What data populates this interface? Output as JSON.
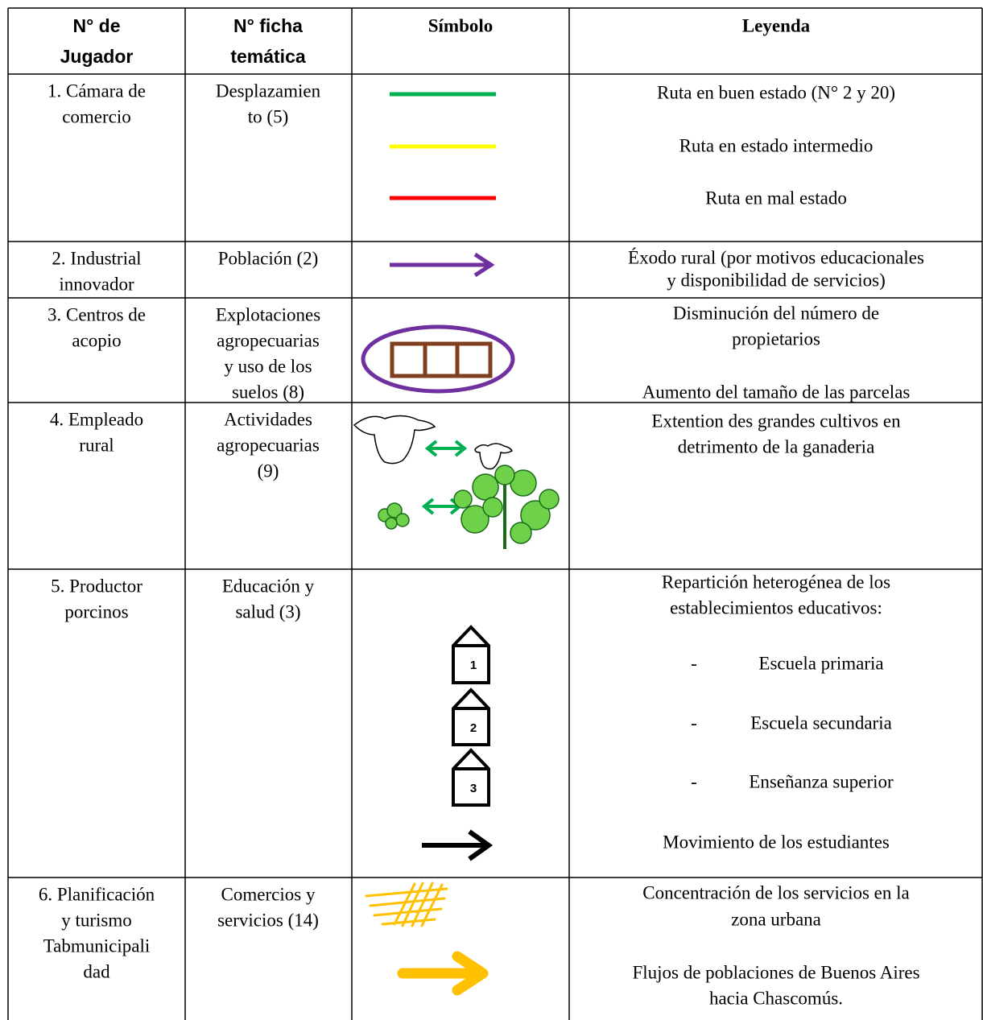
{
  "table": {
    "header": [
      [
        "N° de",
        "Jugador"
      ],
      [
        "N° ficha",
        "temática"
      ],
      [
        "Símbolo"
      ],
      [
        "Leyenda"
      ]
    ],
    "rows": [
      {
        "player": [
          "1. Cámara de",
          "comercio"
        ],
        "sheet": [
          "Desplazamien",
          "to (5)"
        ],
        "legend": [
          {
            "text": "Ruta en buen estado (N° 2 y 20)"
          },
          {
            "text": "Ruta en estado intermedio"
          },
          {
            "text": "Ruta en mal estado"
          }
        ]
      },
      {
        "player": [
          "2. Industrial",
          "innovador"
        ],
        "sheet": [
          "Población (2)"
        ],
        "legend": [
          {
            "text": "Éxodo rural (por motivos educacionales"
          },
          {
            "text": "y disponibilidad de servicios)"
          }
        ]
      },
      {
        "player": [
          "3. Centros de",
          "acopio"
        ],
        "sheet": [
          "Explotaciones",
          "agropecuarias",
          "y uso de los",
          "suelos (8)"
        ],
        "legend": [
          {
            "text": "Disminución del número de"
          },
          {
            "text": "propietarios"
          },
          {
            "text": "Aumento del tamaño de las parcelas"
          }
        ]
      },
      {
        "player": [
          "4. Empleado",
          "rural"
        ],
        "sheet": [
          "Actividades",
          "agropecuarias",
          "(9)"
        ],
        "legend": [
          {
            "text": "Extention des grandes cultivos en"
          },
          {
            "text": "detrimento de la ganaderia"
          }
        ]
      },
      {
        "player": [
          "5. Productor",
          "porcinos"
        ],
        "sheet": [
          "Educación y",
          "salud (3)"
        ],
        "legend": [
          {
            "text": "Repartición heterogénea de los"
          },
          {
            "text": "establecimientos educativos:"
          },
          {
            "bullet": "-",
            "text": "Escuela primaria"
          },
          {
            "bullet": "-",
            "text": "Escuela secundaria"
          },
          {
            "bullet": "-",
            "text": "Enseñanza superior"
          },
          {
            "text": "Movimiento de los estudiantes"
          }
        ],
        "symbol_labels": [
          "1",
          "2",
          "3"
        ]
      },
      {
        "player": [
          "6. Planificación",
          "y turismo",
          "Tabmunicipali",
          "dad"
        ],
        "sheet": [
          "Comercios y",
          "servicios (14)"
        ],
        "legend": [
          {
            "text": "Concentración de los servicios en la"
          },
          {
            "text": "zona urbana"
          },
          {
            "text": "Flujos de poblaciones de Buenos Aires"
          },
          {
            "text": "hacia  Chascomús."
          }
        ]
      }
    ]
  }
}
